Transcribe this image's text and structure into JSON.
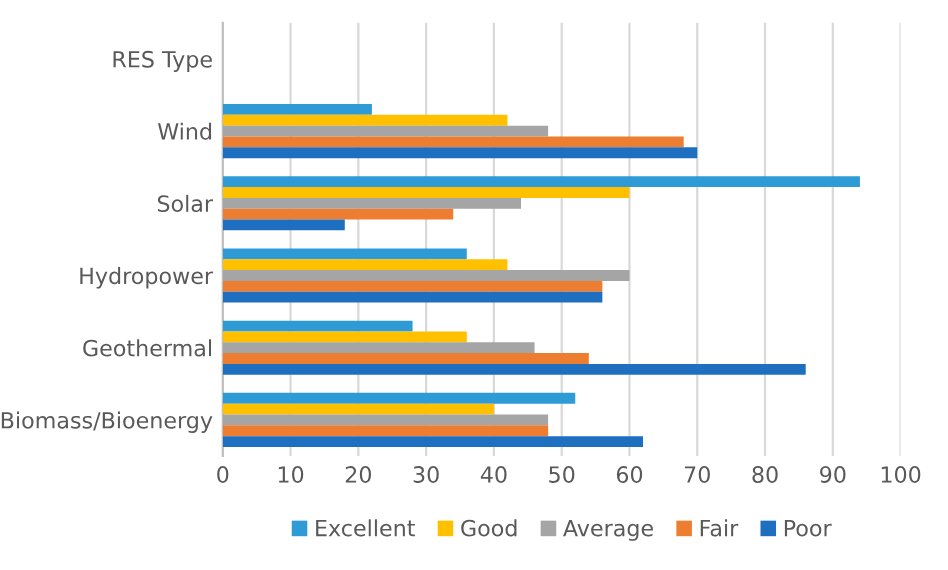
{
  "chart_data": {
    "type": "bar",
    "orientation": "horizontal",
    "categories": [
      "RES Type",
      "Wind",
      "Solar",
      "Hydropower",
      "Geothermal",
      "Biomass/Bioenergy"
    ],
    "series": [
      {
        "name": "Excellent",
        "color": "#2e9bd6",
        "values": [
          null,
          22,
          94,
          36,
          28,
          52
        ]
      },
      {
        "name": "Good",
        "color": "#ffc000",
        "values": [
          null,
          42,
          60,
          42,
          36,
          40
        ]
      },
      {
        "name": "Average",
        "color": "#a5a5a5",
        "values": [
          null,
          48,
          44,
          60,
          46,
          48
        ]
      },
      {
        "name": "Fair",
        "color": "#ed7d31",
        "values": [
          null,
          68,
          34,
          56,
          54,
          48
        ]
      },
      {
        "name": "Poor",
        "color": "#1f6fc0",
        "values": [
          null,
          70,
          18,
          56,
          86,
          62
        ]
      }
    ],
    "xlim": [
      0,
      100
    ],
    "xticks": [
      0,
      10,
      20,
      30,
      40,
      50,
      60,
      70,
      80,
      90,
      100
    ],
    "grid": "x",
    "legend": "bottom"
  }
}
